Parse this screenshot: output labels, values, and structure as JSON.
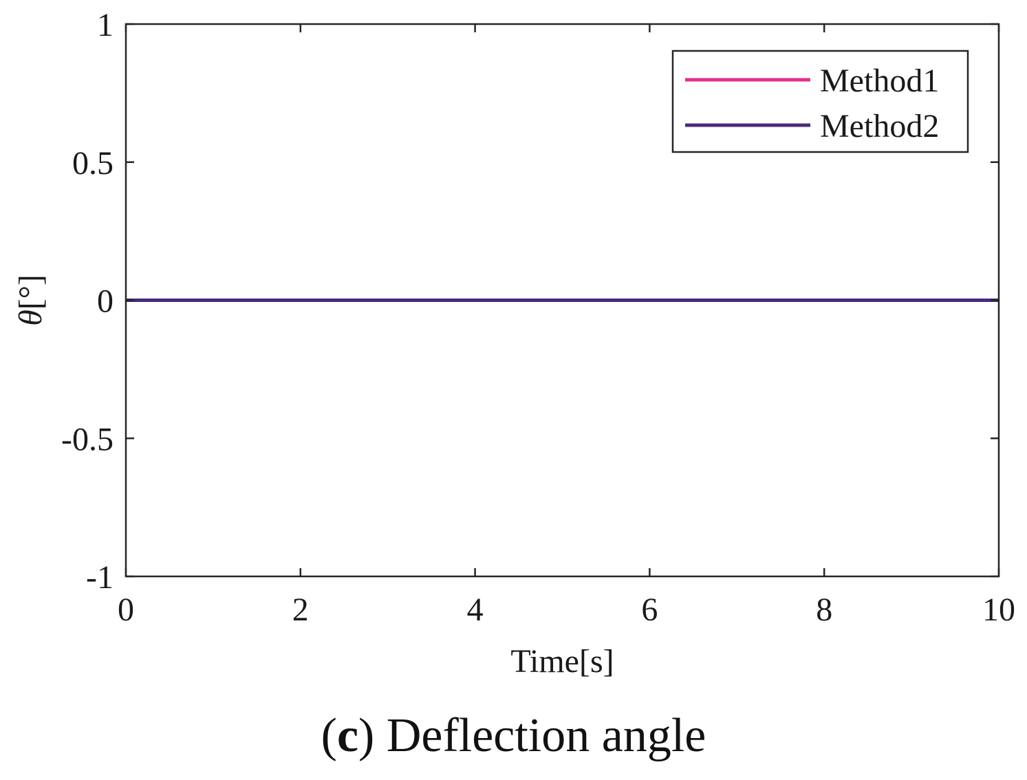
{
  "chart_data": {
    "type": "line",
    "title": "",
    "xlabel": "Time[s]",
    "ylabel_symbol": "θ",
    "ylabel_unit": "[°]",
    "xlim": [
      0,
      10
    ],
    "ylim": [
      -1,
      1
    ],
    "xticks": [
      0,
      2,
      4,
      6,
      8,
      10
    ],
    "yticks": [
      -1,
      -0.5,
      0,
      0.5,
      1
    ],
    "grid": false,
    "legend_position": "top-right",
    "series": [
      {
        "name": "Method1",
        "color": "#e0318c",
        "x": [
          0,
          10
        ],
        "y": [
          0,
          0
        ]
      },
      {
        "name": "Method2",
        "color": "#4a2a7a",
        "x": [
          0,
          10
        ],
        "y": [
          0,
          0
        ]
      }
    ]
  },
  "caption": {
    "prefix_open": "(",
    "letter": "c",
    "prefix_close": ")",
    "text": " Deflection angle"
  }
}
